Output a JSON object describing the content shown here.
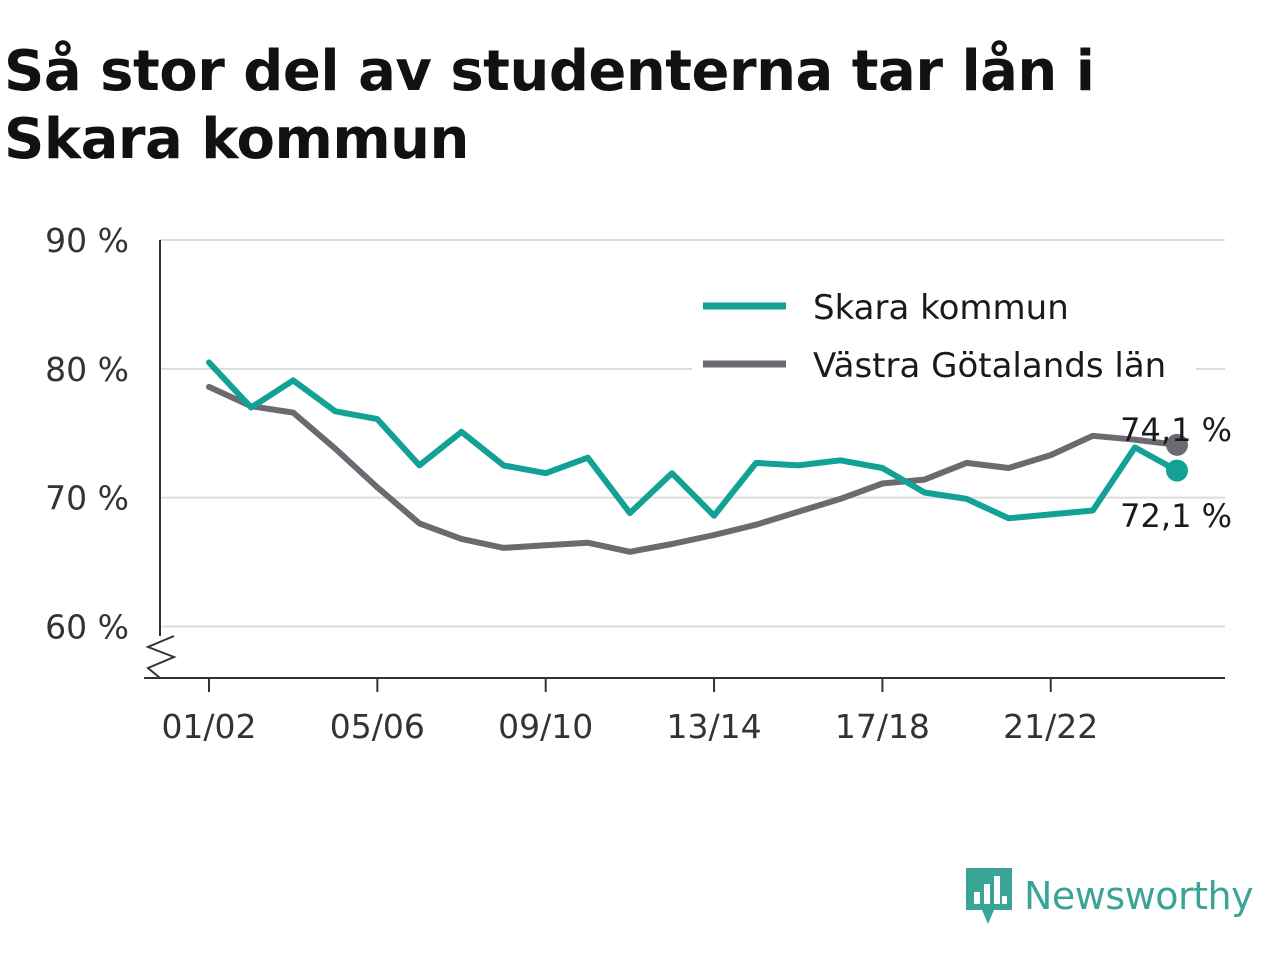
{
  "title": "Så stor del av studenterna tar lån i Skara kommun",
  "brand": {
    "name": "Newsworthy",
    "icon": "newsworthy-logo-icon",
    "color": "#3aa597"
  },
  "chart_data": {
    "type": "line",
    "title": "Så stor del av studenterna tar lån i Skara kommun",
    "xlabel": "",
    "ylabel": "",
    "ylim": [
      56,
      90
    ],
    "y_ticks": [
      60,
      70,
      80,
      90
    ],
    "y_tick_labels": [
      "60 %",
      "70 %",
      "80 %",
      "90 %"
    ],
    "y_axis_break": true,
    "grid": true,
    "legend": "top-right",
    "x": [
      "01/02",
      "02/03",
      "03/04",
      "04/05",
      "05/06",
      "06/07",
      "07/08",
      "08/09",
      "09/10",
      "10/11",
      "11/12",
      "12/13",
      "13/14",
      "14/15",
      "15/16",
      "16/17",
      "17/18",
      "18/19",
      "19/20",
      "20/21",
      "21/22",
      "22/23",
      "23/24",
      "24/25"
    ],
    "x_tick_labels": [
      "01/02",
      "05/06",
      "09/10",
      "13/14",
      "17/18",
      "21/22"
    ],
    "series": [
      {
        "name": "Skara kommun",
        "color": "#12a195",
        "values": [
          80.5,
          77.0,
          79.1,
          76.7,
          76.1,
          72.5,
          75.1,
          72.5,
          71.9,
          73.1,
          68.8,
          71.9,
          68.6,
          72.7,
          72.5,
          72.9,
          72.3,
          70.4,
          69.9,
          68.4,
          68.7,
          69.0,
          73.9,
          72.1
        ],
        "end_label": "72,1 %"
      },
      {
        "name": "Västra Götalands län",
        "color": "#6b6a70",
        "values": [
          78.6,
          77.1,
          76.6,
          73.8,
          70.8,
          68.0,
          66.8,
          66.1,
          66.3,
          66.5,
          65.8,
          66.4,
          67.1,
          67.9,
          68.9,
          69.9,
          71.1,
          71.4,
          72.7,
          72.3,
          73.3,
          74.8,
          74.5,
          74.1
        ],
        "end_label": "74,1 %"
      }
    ]
  }
}
